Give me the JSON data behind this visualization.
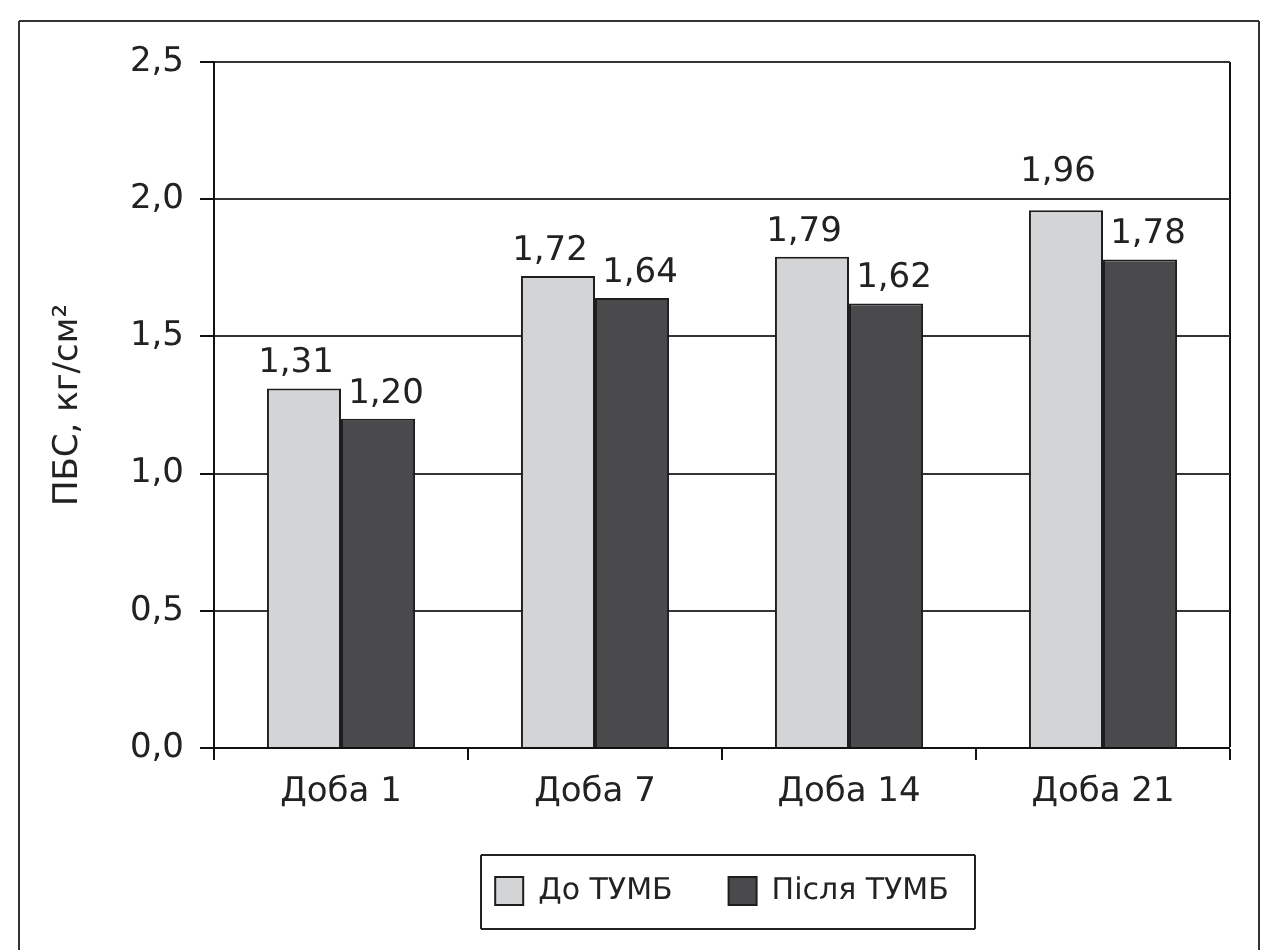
{
  "chart_data": {
    "type": "bar",
    "ylabel": "ПБС, кг/см²",
    "categories": [
      "Доба 1",
      "Доба 7",
      "Доба 14",
      "Доба 21"
    ],
    "series": [
      {
        "name": "До ТУМБ",
        "color": "#d3d4d6",
        "values": [
          1.31,
          1.72,
          1.79,
          1.96
        ],
        "value_labels": [
          "1,31",
          "1,72",
          "1,79",
          "1,96"
        ]
      },
      {
        "name": "Після ТУМБ",
        "color": "#4a4a4c",
        "values": [
          1.2,
          1.64,
          1.62,
          1.78
        ],
        "value_labels": [
          "1,20",
          "1,64",
          "1,62",
          "1,78"
        ]
      }
    ],
    "ylim": [
      0,
      2.5
    ],
    "yticks": [
      {
        "value": 0,
        "label": "0,0"
      },
      {
        "value": 0.5,
        "label": "0,5"
      },
      {
        "value": 1,
        "label": "1,0"
      },
      {
        "value": 1.5,
        "label": "1,5"
      },
      {
        "value": 2,
        "label": "2,0"
      },
      {
        "value": 2.5,
        "label": "2,5"
      }
    ],
    "grid": "y",
    "legend": "bottom"
  }
}
